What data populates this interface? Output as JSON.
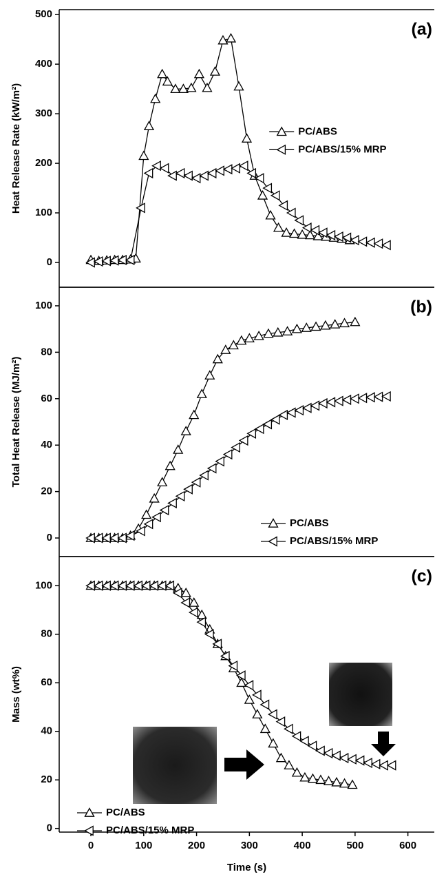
{
  "chart_data": [
    {
      "type": "line",
      "label": "(a)",
      "ylabel": "Heat Release Rate (kW/m²)",
      "xlim": [
        -60,
        650
      ],
      "ylim": [
        -50,
        510
      ],
      "yticks": [
        0,
        100,
        200,
        300,
        400,
        500
      ],
      "legend": "center right",
      "color": "#000000",
      "series": [
        {
          "name": "PC/ABS",
          "marker": "triangle-up",
          "x": [
            0,
            15,
            30,
            45,
            60,
            75,
            85,
            100,
            110,
            122,
            135,
            145,
            160,
            175,
            190,
            205,
            220,
            235,
            250,
            265,
            280,
            295,
            310,
            325,
            340,
            355,
            370,
            385,
            400,
            415,
            430,
            445,
            460,
            475,
            490
          ],
          "values": [
            5,
            3,
            4,
            5,
            5,
            6,
            8,
            215,
            275,
            330,
            380,
            365,
            350,
            350,
            352,
            380,
            352,
            385,
            448,
            452,
            355,
            250,
            175,
            135,
            95,
            70,
            60,
            58,
            56,
            55,
            53,
            52,
            50,
            48,
            45
          ]
        },
        {
          "name": "PC/ABS/15% MRP",
          "marker": "triangle-left",
          "x": [
            0,
            15,
            30,
            45,
            60,
            75,
            95,
            110,
            125,
            140,
            155,
            170,
            185,
            200,
            215,
            230,
            245,
            260,
            275,
            290,
            305,
            320,
            335,
            350,
            365,
            380,
            395,
            410,
            425,
            440,
            455,
            470,
            485,
            500,
            515,
            530,
            545,
            560
          ],
          "values": [
            0,
            2,
            3,
            4,
            5,
            5,
            110,
            180,
            195,
            190,
            175,
            180,
            175,
            170,
            175,
            180,
            185,
            188,
            190,
            195,
            180,
            170,
            150,
            135,
            115,
            100,
            85,
            70,
            65,
            60,
            55,
            52,
            50,
            45,
            42,
            40,
            38,
            35
          ]
        }
      ]
    },
    {
      "type": "line",
      "label": "(b)",
      "ylabel": "Total Heat Release (MJ/m²)",
      "xlim": [
        -60,
        650
      ],
      "ylim": [
        -8,
        108
      ],
      "yticks": [
        0,
        20,
        40,
        60,
        80,
        100
      ],
      "legend": "lower right",
      "color": "#000000",
      "series": [
        {
          "name": "PC/ABS",
          "marker": "triangle-up",
          "x": [
            0,
            15,
            30,
            45,
            60,
            75,
            90,
            105,
            120,
            135,
            150,
            165,
            180,
            195,
            210,
            225,
            240,
            255,
            270,
            285,
            300,
            318,
            336,
            354,
            372,
            390,
            408,
            426,
            444,
            462,
            480,
            500
          ],
          "values": [
            0,
            0,
            0,
            0,
            0,
            1,
            4,
            10,
            17,
            24,
            31,
            38,
            46,
            53,
            62,
            70,
            77,
            81,
            83,
            85,
            86,
            87,
            88,
            88.5,
            89,
            90,
            90.5,
            91,
            91.5,
            92,
            92.5,
            93
          ]
        },
        {
          "name": "PC/ABS/15% MRP",
          "marker": "triangle-left",
          "x": [
            0,
            15,
            30,
            45,
            60,
            75,
            95,
            110,
            125,
            140,
            155,
            170,
            185,
            200,
            215,
            230,
            245,
            260,
            275,
            290,
            305,
            320,
            335,
            350,
            365,
            380,
            395,
            410,
            425,
            440,
            455,
            470,
            485,
            500,
            515,
            530,
            545,
            560
          ],
          "values": [
            0,
            0,
            0,
            0,
            0,
            1,
            3,
            6,
            9,
            12,
            15,
            18,
            21,
            24,
            27,
            30,
            33,
            36,
            39,
            42,
            45,
            47,
            49,
            51,
            53,
            54,
            55,
            56,
            57,
            58,
            58.5,
            59,
            59.5,
            60,
            60.3,
            60.6,
            60.8,
            61
          ]
        }
      ]
    },
    {
      "type": "line",
      "label": "(c)",
      "ylabel": "Mass (wt%)",
      "xlabel": "Time (s)",
      "xlim": [
        -60,
        650
      ],
      "ylim": [
        -1.5,
        112
      ],
      "yticks": [
        0,
        20,
        40,
        60,
        80,
        100
      ],
      "xticks": [
        0,
        100,
        200,
        300,
        400,
        500,
        600
      ],
      "legend": "lower left",
      "color": "#000000",
      "series": [
        {
          "name": "PC/ABS",
          "marker": "triangle-up",
          "x": [
            0,
            15,
            30,
            45,
            60,
            75,
            90,
            105,
            120,
            135,
            150,
            165,
            180,
            195,
            210,
            225,
            240,
            255,
            270,
            285,
            300,
            315,
            330,
            345,
            360,
            375,
            390,
            405,
            420,
            435,
            450,
            465,
            480,
            495
          ],
          "values": [
            100,
            100,
            100,
            100,
            100,
            100,
            100,
            100,
            100,
            100,
            100,
            99,
            97,
            93,
            88,
            82,
            76,
            71,
            66,
            60,
            53,
            47,
            41,
            35,
            29,
            26,
            23,
            21,
            20.5,
            20,
            19.5,
            19,
            18.5,
            18
          ]
        },
        {
          "name": "PC/ABS/15% MRP",
          "marker": "triangle-left",
          "x": [
            0,
            15,
            30,
            45,
            60,
            75,
            90,
            105,
            120,
            135,
            150,
            165,
            180,
            195,
            210,
            225,
            240,
            255,
            270,
            285,
            300,
            315,
            330,
            345,
            360,
            375,
            390,
            405,
            420,
            435,
            450,
            465,
            480,
            495,
            510,
            525,
            540,
            555,
            570
          ],
          "values": [
            100,
            100,
            100,
            100,
            100,
            100,
            100,
            100,
            100,
            100,
            100,
            97,
            93,
            89,
            85,
            80,
            76,
            71,
            67,
            63,
            59,
            55,
            51,
            47,
            44,
            41,
            38,
            36,
            34,
            32,
            31,
            30,
            29,
            28.5,
            28,
            27,
            26.5,
            26,
            26
          ]
        }
      ]
    }
  ]
}
